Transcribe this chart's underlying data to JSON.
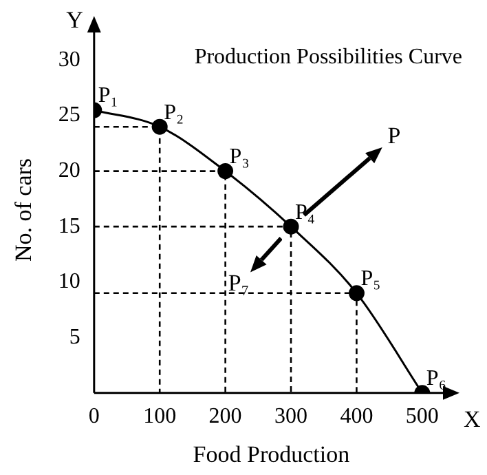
{
  "chart_data": {
    "type": "line",
    "title": "Production Possibilities Curve",
    "xlabel": "Food Production",
    "ylabel": "No. of cars",
    "series": [
      {
        "x": [
          0,
          100,
          200,
          300,
          400,
          500
        ],
        "values": [
          25.5,
          24,
          20,
          15,
          9,
          0
        ],
        "value_labels": [
          "P₁",
          "P₂",
          "P₃",
          "P₄",
          "P₅",
          "P₆"
        ],
        "color": "#000000",
        "marker": "circle",
        "line_style": "solid"
      },
      {
        "x": [
          0,
          100,
          100
        ],
        "values": [
          24,
          24,
          0
        ],
        "color": "#000000",
        "marker": "none",
        "line_style": "dashed"
      },
      {
        "x": [
          0,
          200,
          200
        ],
        "values": [
          20,
          20,
          0
        ],
        "color": "#000000",
        "marker": "none",
        "line_style": "dashed"
      },
      {
        "x": [
          0,
          300,
          300
        ],
        "values": [
          15,
          15,
          0
        ],
        "color": "#000000",
        "marker": "none",
        "line_style": "dashed"
      },
      {
        "x": [
          0,
          400,
          400
        ],
        "values": [
          9,
          9,
          0
        ],
        "color": "#000000",
        "marker": "none",
        "line_style": "dashed"
      }
    ],
    "xlim": [
      0,
      540
    ],
    "xticks": [
      0,
      100,
      200,
      300,
      400,
      500
    ],
    "ylim": [
      0,
      33
    ],
    "yticks": [
      5,
      10,
      15,
      20,
      25,
      30
    ],
    "annotations": [
      "P",
      "P₇",
      "X",
      "Y"
    ],
    "grid": false,
    "legend": false
  }
}
